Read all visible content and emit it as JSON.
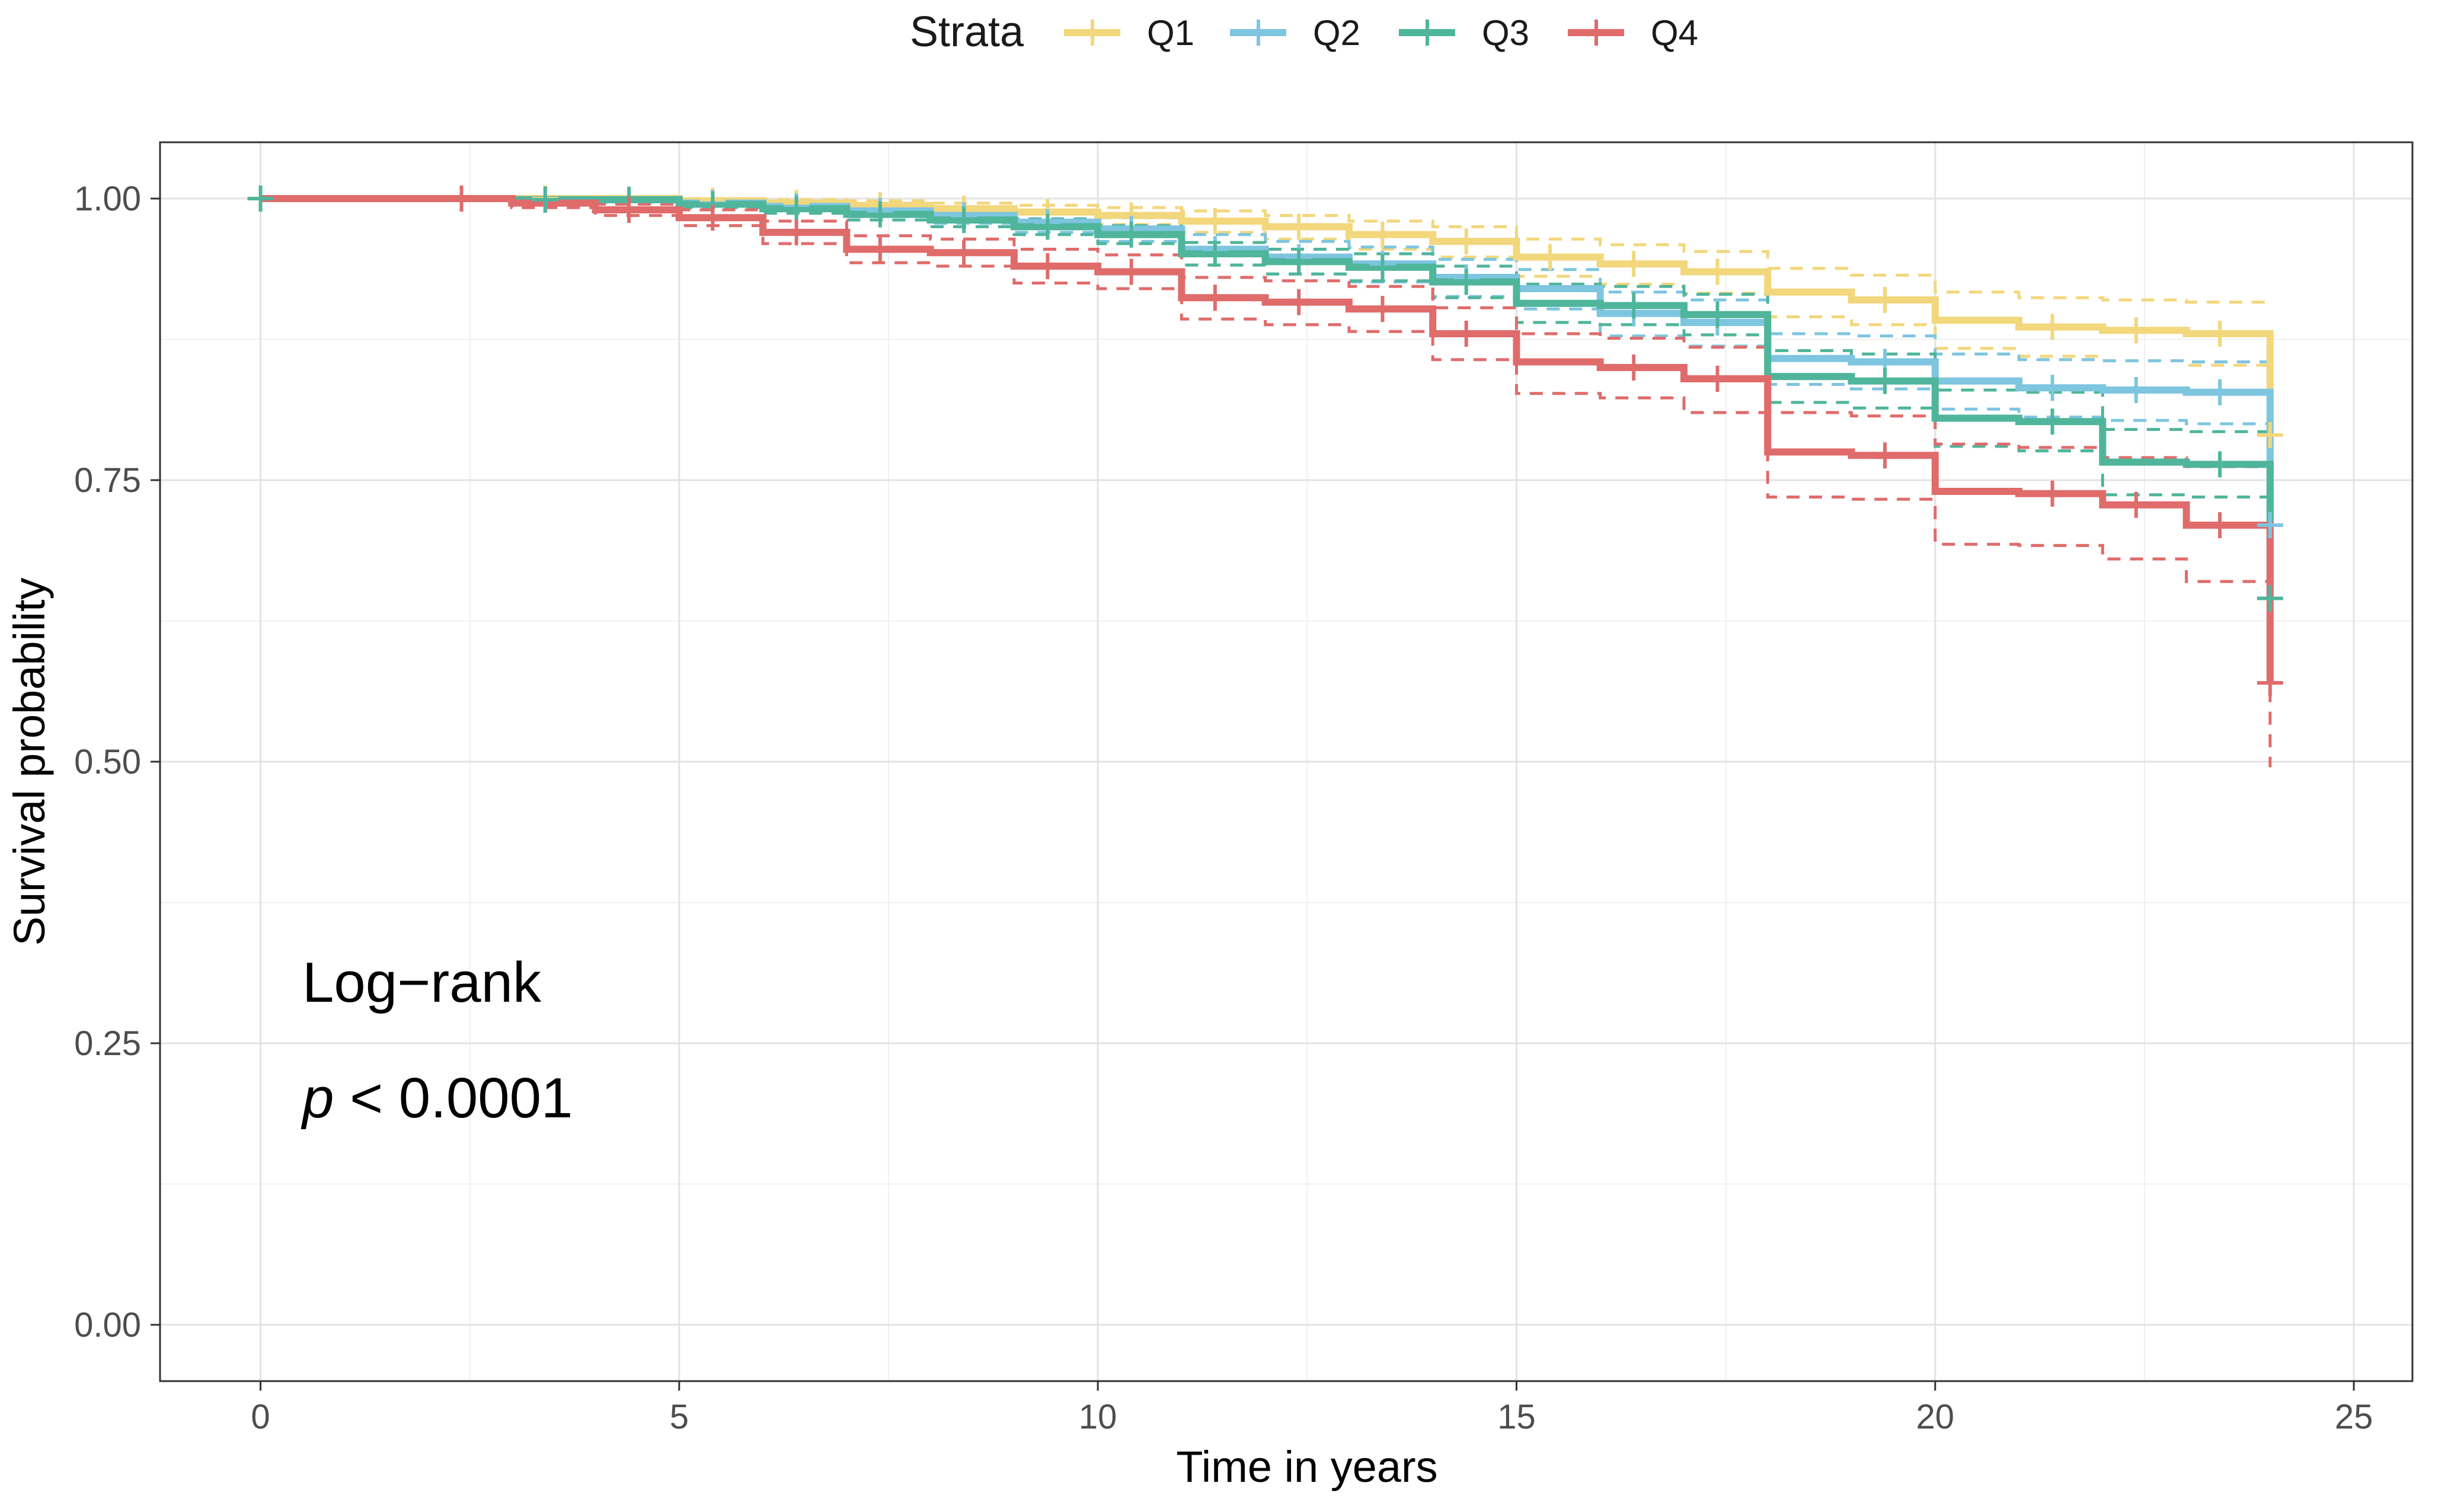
{
  "chart_data": {
    "type": "line",
    "subtype": "kaplan-meier",
    "title": "",
    "xlabel": "Time in years",
    "ylabel": "Survival probability",
    "xlim": [
      -1.2,
      25.7
    ],
    "ylim": [
      -0.05,
      1.05
    ],
    "x_ticks": [
      0,
      5,
      10,
      15,
      20,
      25
    ],
    "x_tick_labels": [
      "0",
      "5",
      "10",
      "15",
      "20",
      "25"
    ],
    "y_ticks": [
      0,
      0.25,
      0.5,
      0.75,
      1
    ],
    "y_tick_labels": [
      "0.00",
      "0.25",
      "0.50",
      "0.75",
      "1.00"
    ],
    "grid": true,
    "legend": {
      "title": "Strata",
      "position": "top"
    },
    "annotation": {
      "line1": "Log−rank",
      "p_symbol": "p",
      "p_value": " < 0.0001"
    },
    "series": [
      {
        "name": "Q1",
        "color": "#F2D77C",
        "steps": [
          [
            0,
            1.0
          ],
          [
            5,
            0.998
          ],
          [
            6,
            0.996
          ],
          [
            7,
            0.994
          ],
          [
            8,
            0.991
          ],
          [
            9,
            0.988
          ],
          [
            10,
            0.985
          ],
          [
            11,
            0.98
          ],
          [
            12,
            0.975
          ],
          [
            13,
            0.968
          ],
          [
            14,
            0.962
          ],
          [
            15,
            0.948
          ],
          [
            16,
            0.942
          ],
          [
            17,
            0.935
          ],
          [
            18,
            0.917
          ],
          [
            19,
            0.91
          ],
          [
            20,
            0.892
          ],
          [
            21,
            0.886
          ],
          [
            22,
            0.883
          ],
          [
            23,
            0.88
          ],
          [
            24,
            0.877
          ]
        ],
        "upper": [
          [
            0,
            1.0
          ],
          [
            5,
            1.0
          ],
          [
            6,
            0.999
          ],
          [
            7,
            0.998
          ],
          [
            8,
            0.996
          ],
          [
            9,
            0.994
          ],
          [
            10,
            0.992
          ],
          [
            11,
            0.989
          ],
          [
            12,
            0.985
          ],
          [
            13,
            0.98
          ],
          [
            14,
            0.975
          ],
          [
            15,
            0.964
          ],
          [
            16,
            0.959
          ],
          [
            17,
            0.953
          ],
          [
            18,
            0.938
          ],
          [
            19,
            0.932
          ],
          [
            20,
            0.917
          ],
          [
            21,
            0.912
          ],
          [
            22,
            0.91
          ],
          [
            23,
            0.908
          ],
          [
            24,
            0.906
          ]
        ],
        "lower": [
          [
            0,
            1.0
          ],
          [
            5,
            0.995
          ],
          [
            6,
            0.992
          ],
          [
            7,
            0.989
          ],
          [
            8,
            0.985
          ],
          [
            9,
            0.981
          ],
          [
            10,
            0.977
          ],
          [
            11,
            0.97
          ],
          [
            12,
            0.964
          ],
          [
            13,
            0.955
          ],
          [
            14,
            0.948
          ],
          [
            15,
            0.931
          ],
          [
            16,
            0.924
          ],
          [
            17,
            0.916
          ],
          [
            18,
            0.895
          ],
          [
            19,
            0.888
          ],
          [
            20,
            0.867
          ],
          [
            21,
            0.86
          ],
          [
            22,
            0.856
          ],
          [
            23,
            0.852
          ],
          [
            24,
            0.848
          ]
        ],
        "drop_to": 0.79,
        "censor_x": [
          0,
          3,
          5,
          6,
          7,
          8,
          9,
          10,
          11,
          12,
          13,
          14,
          15,
          16,
          17,
          19,
          21,
          22,
          23,
          24
        ]
      },
      {
        "name": "Q2",
        "color": "#7EC5E0",
        "steps": [
          [
            0,
            1.0
          ],
          [
            3,
            0.999
          ],
          [
            5,
            0.996
          ],
          [
            6,
            0.993
          ],
          [
            7,
            0.989
          ],
          [
            8,
            0.985
          ],
          [
            9,
            0.979
          ],
          [
            10,
            0.973
          ],
          [
            11,
            0.955
          ],
          [
            12,
            0.948
          ],
          [
            13,
            0.942
          ],
          [
            14,
            0.93
          ],
          [
            15,
            0.92
          ],
          [
            16,
            0.898
          ],
          [
            17,
            0.89
          ],
          [
            18,
            0.858
          ],
          [
            19,
            0.855
          ],
          [
            20,
            0.838
          ],
          [
            21,
            0.832
          ],
          [
            22,
            0.83
          ],
          [
            23,
            0.828
          ]
        ],
        "upper": [
          [
            0,
            1.0
          ],
          [
            3,
            1.0
          ],
          [
            5,
            0.999
          ],
          [
            6,
            0.997
          ],
          [
            7,
            0.995
          ],
          [
            8,
            0.992
          ],
          [
            9,
            0.988
          ],
          [
            10,
            0.983
          ],
          [
            11,
            0.968
          ],
          [
            12,
            0.962
          ],
          [
            13,
            0.957
          ],
          [
            14,
            0.946
          ],
          [
            15,
            0.937
          ],
          [
            16,
            0.917
          ],
          [
            17,
            0.91
          ],
          [
            18,
            0.88
          ],
          [
            19,
            0.878
          ],
          [
            20,
            0.862
          ],
          [
            21,
            0.857
          ],
          [
            22,
            0.856
          ],
          [
            23,
            0.855
          ]
        ],
        "lower": [
          [
            0,
            1.0
          ],
          [
            3,
            0.997
          ],
          [
            5,
            0.993
          ],
          [
            6,
            0.989
          ],
          [
            7,
            0.984
          ],
          [
            8,
            0.978
          ],
          [
            9,
            0.97
          ],
          [
            10,
            0.962
          ],
          [
            11,
            0.941
          ],
          [
            12,
            0.933
          ],
          [
            13,
            0.926
          ],
          [
            14,
            0.913
          ],
          [
            15,
            0.902
          ],
          [
            16,
            0.878
          ],
          [
            17,
            0.869
          ],
          [
            18,
            0.835
          ],
          [
            19,
            0.831
          ],
          [
            20,
            0.813
          ],
          [
            21,
            0.806
          ],
          [
            22,
            0.803
          ],
          [
            23,
            0.8
          ]
        ],
        "drop_to": 0.71,
        "censor_x": [
          3,
          5,
          6,
          7,
          8,
          9,
          10,
          11,
          12,
          13,
          14,
          16,
          17,
          19,
          21,
          22,
          23,
          24
        ]
      },
      {
        "name": "Q3",
        "color": "#4FB59B",
        "steps": [
          [
            0,
            1.0
          ],
          [
            3,
            0.999
          ],
          [
            5,
            0.995
          ],
          [
            6,
            0.991
          ],
          [
            7,
            0.986
          ],
          [
            8,
            0.981
          ],
          [
            9,
            0.975
          ],
          [
            10,
            0.968
          ],
          [
            11,
            0.951
          ],
          [
            12,
            0.944
          ],
          [
            13,
            0.939
          ],
          [
            14,
            0.926
          ],
          [
            15,
            0.907
          ],
          [
            16,
            0.905
          ],
          [
            17,
            0.897
          ],
          [
            18,
            0.842
          ],
          [
            19,
            0.838
          ],
          [
            20,
            0.805
          ],
          [
            21,
            0.802
          ],
          [
            22,
            0.766
          ],
          [
            23,
            0.764
          ]
        ],
        "upper": [
          [
            0,
            1.0
          ],
          [
            3,
            1.0
          ],
          [
            5,
            0.998
          ],
          [
            6,
            0.995
          ],
          [
            7,
            0.991
          ],
          [
            8,
            0.987
          ],
          [
            9,
            0.982
          ],
          [
            10,
            0.976
          ],
          [
            11,
            0.961
          ],
          [
            12,
            0.955
          ],
          [
            13,
            0.951
          ],
          [
            14,
            0.94
          ],
          [
            15,
            0.924
          ],
          [
            16,
            0.922
          ],
          [
            17,
            0.915
          ],
          [
            18,
            0.865
          ],
          [
            19,
            0.862
          ],
          [
            20,
            0.83
          ],
          [
            21,
            0.828
          ],
          [
            22,
            0.795
          ],
          [
            23,
            0.793
          ]
        ],
        "lower": [
          [
            0,
            1.0
          ],
          [
            3,
            0.997
          ],
          [
            5,
            0.992
          ],
          [
            6,
            0.987
          ],
          [
            7,
            0.981
          ],
          [
            8,
            0.975
          ],
          [
            9,
            0.968
          ],
          [
            10,
            0.96
          ],
          [
            11,
            0.941
          ],
          [
            12,
            0.933
          ],
          [
            13,
            0.927
          ],
          [
            14,
            0.912
          ],
          [
            15,
            0.89
          ],
          [
            16,
            0.888
          ],
          [
            17,
            0.879
          ],
          [
            18,
            0.819
          ],
          [
            19,
            0.814
          ],
          [
            20,
            0.78
          ],
          [
            21,
            0.776
          ],
          [
            22,
            0.737
          ],
          [
            23,
            0.735
          ]
        ],
        "drop_to": 0.645,
        "censor_x": [
          0,
          3,
          4,
          5,
          6,
          7,
          8,
          9,
          10,
          11,
          12,
          13,
          14,
          16,
          17,
          19,
          21,
          23,
          24
        ]
      },
      {
        "name": "Q4",
        "color": "#E06B6B",
        "steps": [
          [
            0,
            1.0
          ],
          [
            3,
            0.996
          ],
          [
            4,
            0.99
          ],
          [
            5,
            0.983
          ],
          [
            6,
            0.97
          ],
          [
            7,
            0.955
          ],
          [
            8,
            0.952
          ],
          [
            9,
            0.94
          ],
          [
            10,
            0.935
          ],
          [
            11,
            0.912
          ],
          [
            12,
            0.908
          ],
          [
            13,
            0.902
          ],
          [
            14,
            0.88
          ],
          [
            15,
            0.855
          ],
          [
            16,
            0.85
          ],
          [
            17,
            0.84
          ],
          [
            18,
            0.775
          ],
          [
            19,
            0.772
          ],
          [
            20,
            0.74
          ],
          [
            21,
            0.738
          ],
          [
            22,
            0.728
          ],
          [
            23,
            0.71
          ]
        ],
        "upper": [
          [
            0,
            1.0
          ],
          [
            3,
            0.999
          ],
          [
            4,
            0.995
          ],
          [
            5,
            0.99
          ],
          [
            6,
            0.98
          ],
          [
            7,
            0.967
          ],
          [
            8,
            0.964
          ],
          [
            9,
            0.955
          ],
          [
            10,
            0.95
          ],
          [
            11,
            0.93
          ],
          [
            12,
            0.927
          ],
          [
            13,
            0.922
          ],
          [
            14,
            0.903
          ],
          [
            15,
            0.88
          ],
          [
            16,
            0.876
          ],
          [
            17,
            0.868
          ],
          [
            18,
            0.81
          ],
          [
            19,
            0.807
          ],
          [
            20,
            0.782
          ],
          [
            21,
            0.779
          ],
          [
            22,
            0.77
          ],
          [
            23,
            0.762
          ]
        ],
        "lower": [
          [
            0,
            1.0
          ],
          [
            3,
            0.992
          ],
          [
            4,
            0.985
          ],
          [
            5,
            0.976
          ],
          [
            6,
            0.96
          ],
          [
            7,
            0.943
          ],
          [
            8,
            0.94
          ],
          [
            9,
            0.925
          ],
          [
            10,
            0.92
          ],
          [
            11,
            0.893
          ],
          [
            12,
            0.888
          ],
          [
            13,
            0.882
          ],
          [
            14,
            0.857
          ],
          [
            15,
            0.827
          ],
          [
            16,
            0.823
          ],
          [
            17,
            0.81
          ],
          [
            18,
            0.735
          ],
          [
            19,
            0.733
          ],
          [
            20,
            0.693
          ],
          [
            21,
            0.692
          ],
          [
            22,
            0.68
          ],
          [
            23,
            0.66
          ]
        ],
        "drop_to": 0.57,
        "drop_lower": 0.495,
        "censor_x": [
          2,
          4,
          5,
          6,
          7,
          8,
          9,
          10,
          11,
          12,
          13,
          14,
          16,
          17,
          19,
          21,
          22,
          23,
          24
        ]
      }
    ]
  }
}
